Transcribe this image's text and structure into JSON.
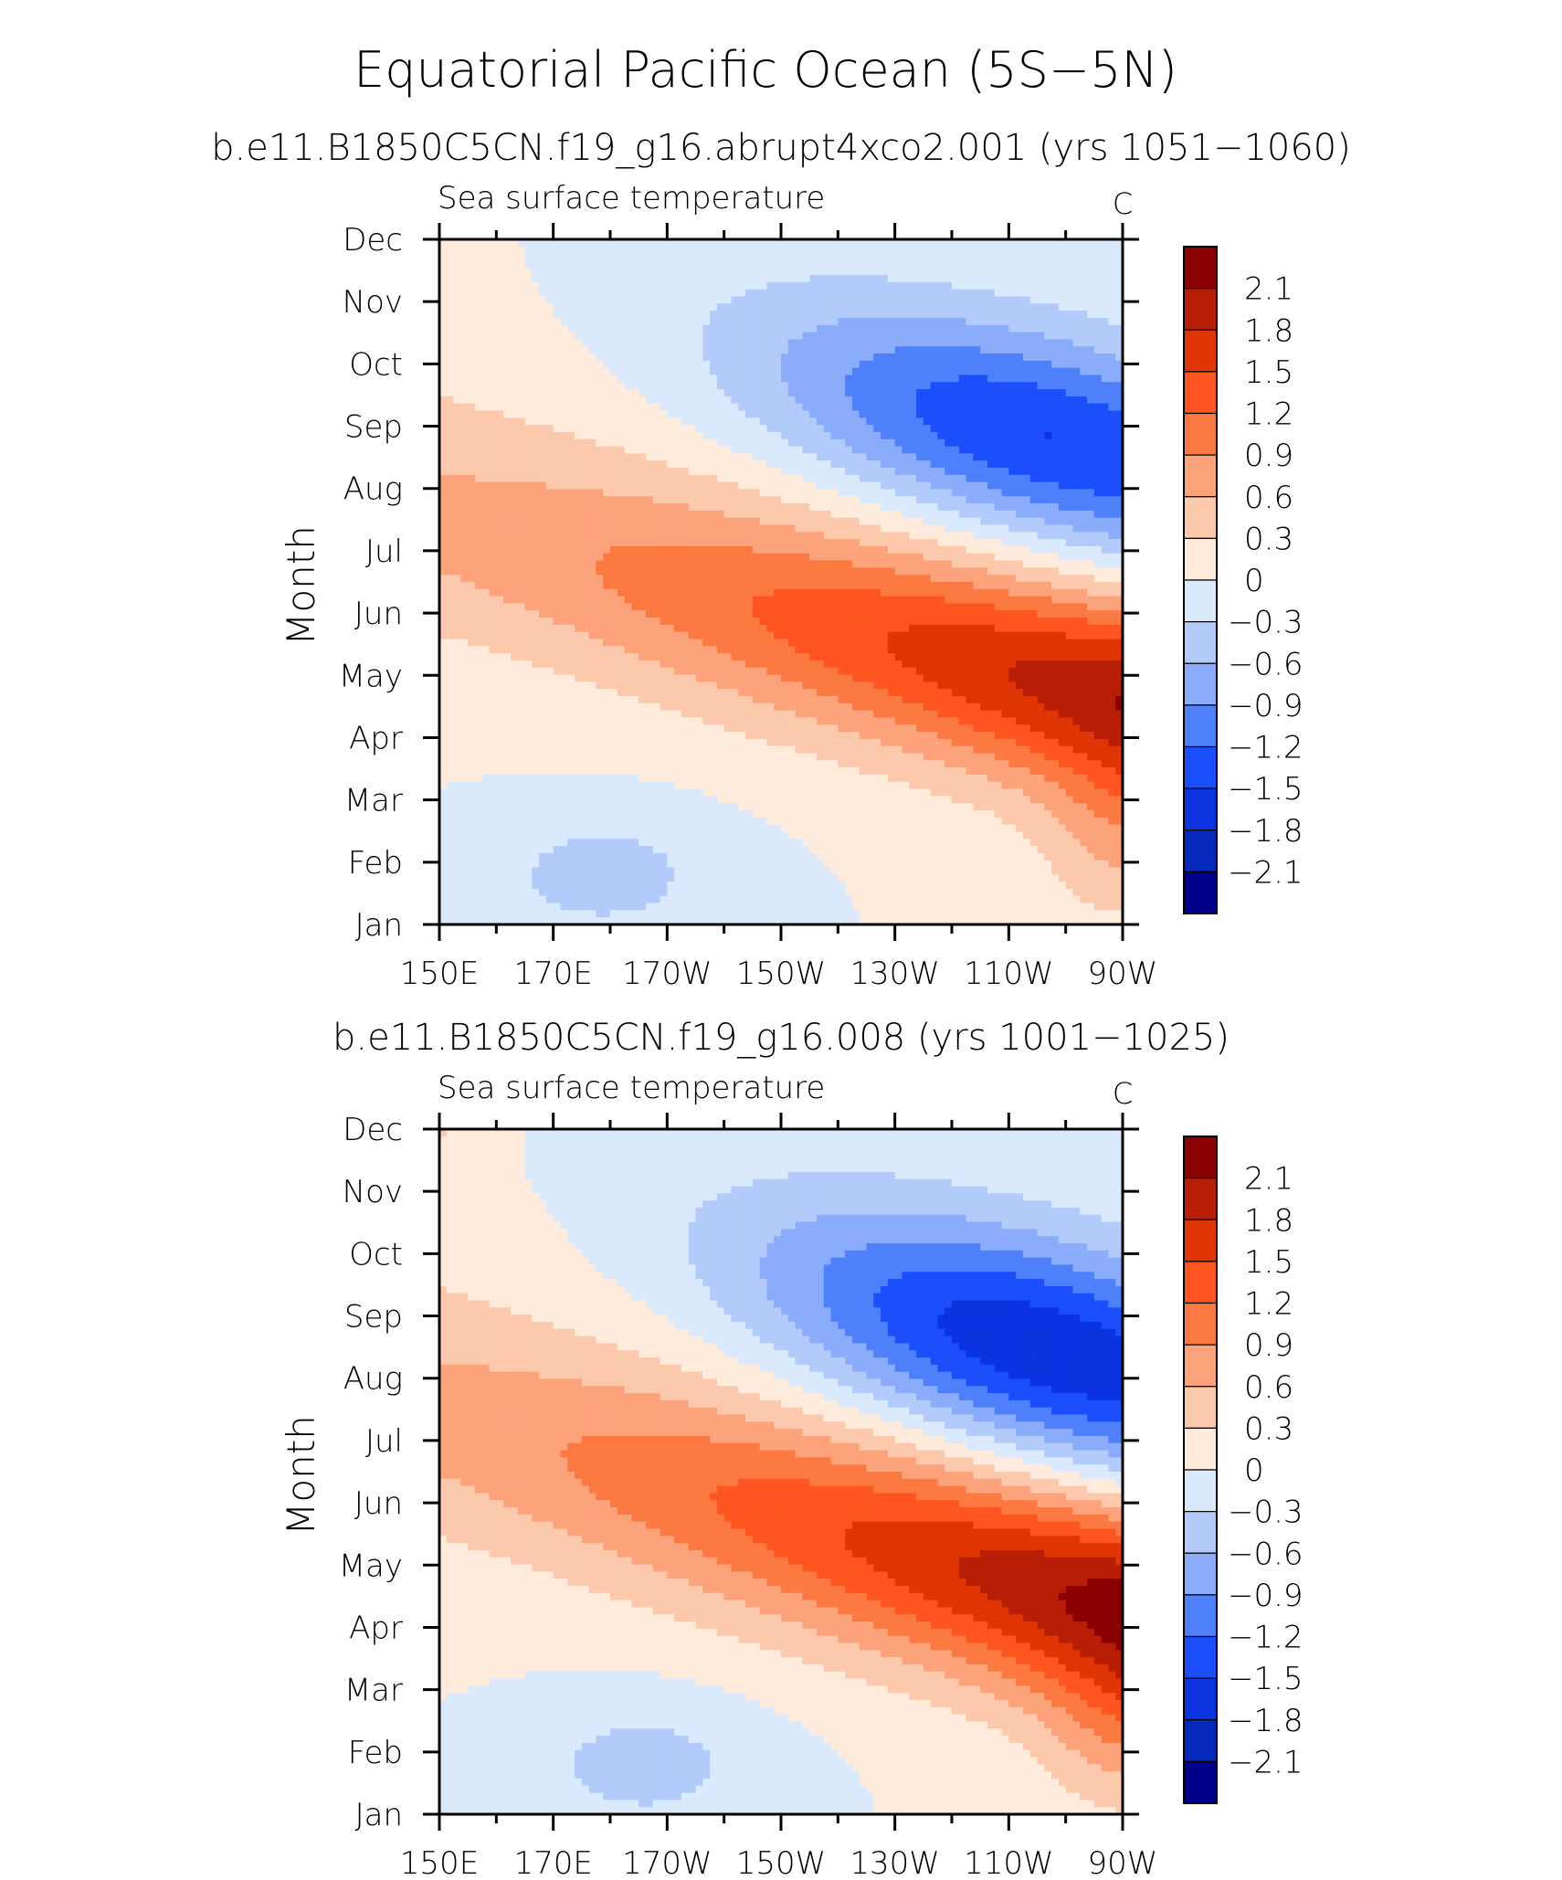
{
  "figure": {
    "title": "Equatorial Pacific Ocean (5S−5N)"
  },
  "colorbar": {
    "labels": [
      "2.1",
      "1.8",
      "1.5",
      "1.2",
      "0.9",
      "0.6",
      "0.3",
      "0",
      "−0.3",
      "−0.6",
      "−0.9",
      "−1.2",
      "−1.5",
      "−1.8",
      "−2.1"
    ],
    "colors": [
      "#8b0000",
      "#b81e06",
      "#e03505",
      "#ff5520",
      "#fc7a42",
      "#fda37c",
      "#fdc9ad",
      "#ffebdc",
      "#dae9fb",
      "#b3cbfb",
      "#8aacfb",
      "#4f80fb",
      "#1a4ffb",
      "#0b33e0",
      "#062abb",
      "#00008b"
    ]
  },
  "chart_data": [
    {
      "type": "contour",
      "subtitle": "b.e11.B1850C5CN.f19_g16.abrupt4xco2.001 (yrs 1051−1060)",
      "left_label": "Sea surface temperature",
      "right_label": "C",
      "ylabel": "Month",
      "xlabel": "",
      "x_ticks": [
        "150E",
        "170E",
        "170W",
        "150W",
        "130W",
        "110W",
        "90W"
      ],
      "x_range_deg_east": [
        150,
        270
      ],
      "y_ticks": [
        "Jan",
        "Feb",
        "Mar",
        "Apr",
        "May",
        "Jun",
        "Jul",
        "Aug",
        "Sep",
        "Oct",
        "Nov",
        "Dec"
      ],
      "levels": [
        -2.1,
        -1.8,
        -1.5,
        -1.2,
        -0.9,
        -0.6,
        -0.3,
        0,
        0.3,
        0.6,
        0.9,
        1.2,
        1.5,
        1.8,
        2.1
      ],
      "features": [
        {
          "label": "warm anomaly max",
          "month": "May",
          "lon_deg_east": 253,
          "value": 1.6
        },
        {
          "label": "cold anomaly min",
          "month": "Oct",
          "lon_deg_east": 234,
          "value": -1.4
        },
        {
          "label": "cold anomaly",
          "month": "Sep",
          "lon_deg_east": 266,
          "value": -1.3
        },
        {
          "label": "cold anomaly west",
          "month": "Feb",
          "lon_deg_east": 172,
          "value": -0.4
        }
      ]
    },
    {
      "type": "contour",
      "subtitle": "b.e11.B1850C5CN.f19_g16.008 (yrs 1001−1025)",
      "left_label": "Sea surface temperature",
      "right_label": "C",
      "ylabel": "Month",
      "xlabel": "",
      "x_ticks": [
        "150E",
        "170E",
        "170W",
        "150W",
        "130W",
        "110W",
        "90W"
      ],
      "x_range_deg_east": [
        150,
        270
      ],
      "y_ticks": [
        "Jan",
        "Feb",
        "Mar",
        "Apr",
        "May",
        "Jun",
        "Jul",
        "Aug",
        "Sep",
        "Oct",
        "Nov",
        "Dec"
      ],
      "levels": [
        -2.1,
        -1.8,
        -1.5,
        -1.2,
        -0.9,
        -0.6,
        -0.3,
        0,
        0.3,
        0.6,
        0.9,
        1.2,
        1.5,
        1.8,
        2.1
      ],
      "features": [
        {
          "label": "warm anomaly max",
          "month": "May",
          "lon_deg_east": 254,
          "value": 1.7
        },
        {
          "label": "warm anomaly max 2",
          "month": "Apr",
          "lon_deg_east": 263,
          "value": 1.8
        },
        {
          "label": "cold anomaly min",
          "month": "Sep",
          "lon_deg_east": 246,
          "value": -1.5
        },
        {
          "label": "cold anomaly east",
          "month": "Sep",
          "lon_deg_east": 266,
          "value": -1.7
        },
        {
          "label": "cold anomaly west",
          "month": "Feb",
          "lon_deg_east": 178,
          "value": -0.4
        }
      ]
    }
  ]
}
